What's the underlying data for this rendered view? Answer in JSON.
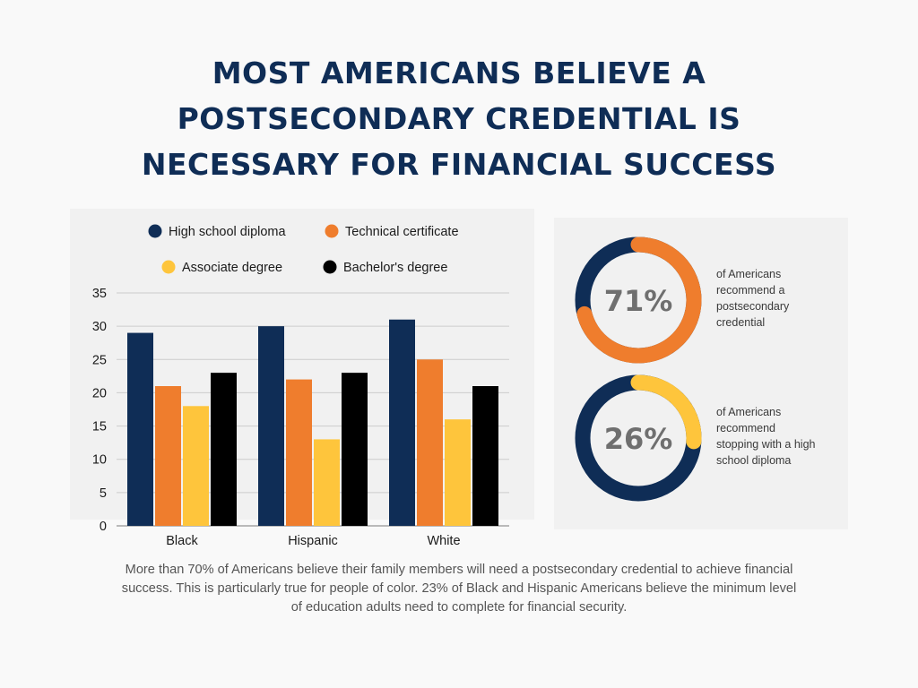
{
  "title_lines": [
    "MOST AMERICANS BELIEVE A",
    "POSTSECONDARY CREDENTIAL IS",
    "NECESSARY FOR FINANCIAL SUCCESS"
  ],
  "chart_data": [
    {
      "type": "bar",
      "categories": [
        "Black",
        "Hispanic",
        "White"
      ],
      "series": [
        {
          "name": "High school diploma",
          "color": "#0f2d56",
          "values": [
            29,
            30,
            31
          ]
        },
        {
          "name": "Technical certificate",
          "color": "#ef7d2d",
          "values": [
            21,
            22,
            25
          ]
        },
        {
          "name": "Associate degree",
          "color": "#fec53c",
          "values": [
            18,
            13,
            16
          ]
        },
        {
          "name": "Bachelor's degree",
          "color": "#000000",
          "values": [
            23,
            23,
            21
          ]
        }
      ],
      "ylim": [
        0,
        35
      ],
      "yticks": [
        0,
        5,
        10,
        15,
        20,
        25,
        30,
        35
      ],
      "grid": true,
      "legend": "top"
    },
    {
      "type": "pie",
      "style": "donut",
      "values": [
        71,
        29
      ],
      "colors": [
        "#ef7d2d",
        "#0f2d56"
      ],
      "center_label": "71%",
      "annotation": "of Americans recommend a postsecondary credential"
    },
    {
      "type": "pie",
      "style": "donut",
      "values": [
        26,
        74
      ],
      "colors": [
        "#fec53c",
        "#0f2d56"
      ],
      "center_label": "26%",
      "annotation": "of Americans recommend stopping with a high school diploma"
    }
  ],
  "donut_labels": [
    [
      "of Americans",
      "recommend a",
      "postsecondary",
      "credential"
    ],
    [
      "of Americans",
      "recommend",
      "stopping with a high",
      "school diploma"
    ]
  ],
  "caption_lines": [
    "More than 70% of Americans believe their family members will need a postsecondary credential to achieve financial",
    "success. This is particularly true for people of color. 23% of Black and Hispanic Americans believe the minimum level",
    "of education adults need to complete for financial security."
  ],
  "colors": {
    "navy": "#0f2d56",
    "orange": "#ef7d2d",
    "yellow": "#fec53c",
    "black": "#000000",
    "gray_text": "#555555",
    "donut_value_text": "#6f6f6f"
  }
}
